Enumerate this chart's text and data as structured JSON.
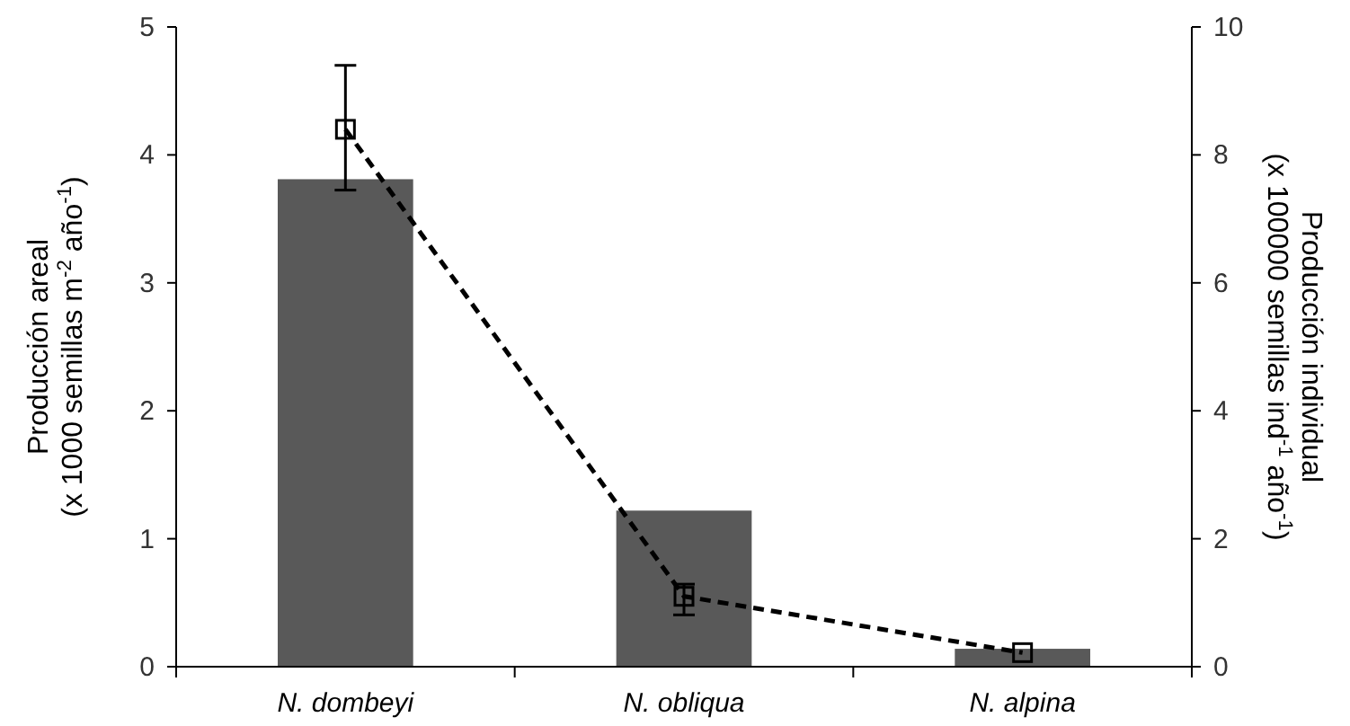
{
  "chart_data": {
    "type": "bar",
    "categories": [
      "N. dombeyi",
      "N. obliqua",
      "N. alpina"
    ],
    "ylabel": "Producción areal\n(x 1000 semillas m$^{-2}$ año$^{-1}$)",
    "y2label": "Producción individual\n(x 100000 semillas ind$^{-1}$ año$^{-1}$)",
    "ylim": [
      0,
      5
    ],
    "yticks": [
      0,
      1,
      2,
      3,
      4,
      5
    ],
    "y2lim": [
      0,
      10
    ],
    "y2ticks": [
      0,
      2,
      4,
      6,
      8,
      10
    ],
    "grid": false,
    "series": [
      {
        "color": "#595959",
        "values": [
          3.81,
          1.22,
          0.14
        ]
      },
      {
        "type": "line",
        "axis": "y2",
        "color": "#000000",
        "marker": "square",
        "line_style": "dashed",
        "values": [
          8.4,
          1.1,
          0.22
        ],
        "errors": [
          [
            7.45,
            9.4
          ],
          [
            0.81,
            1.29
          ],
          null
        ]
      }
    ]
  }
}
